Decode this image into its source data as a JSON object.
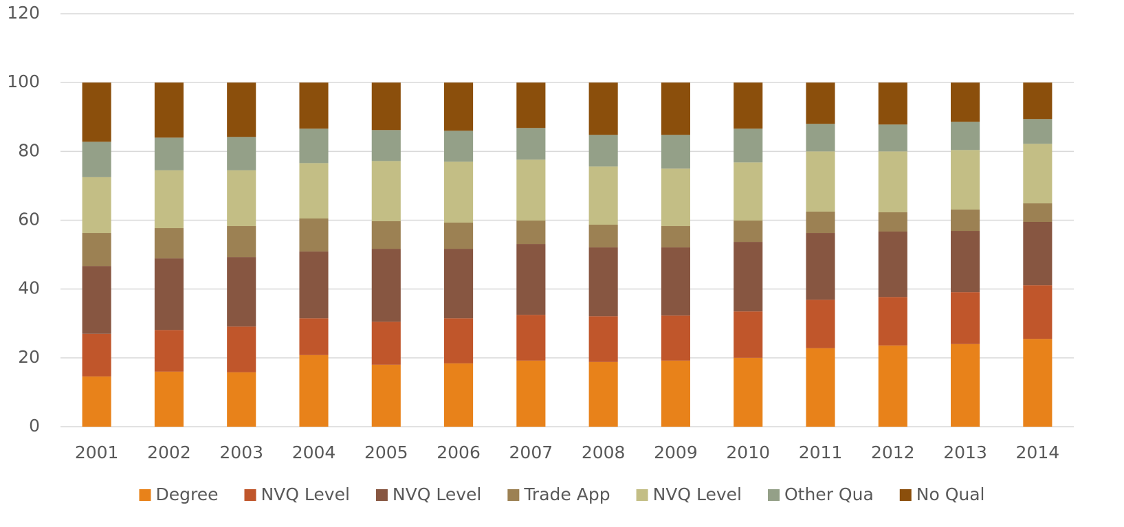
{
  "chart_data": {
    "type": "stacked_bar",
    "categories": [
      "2001",
      "2002",
      "2003",
      "2004",
      "2005",
      "2006",
      "2007",
      "2008",
      "2009",
      "2010",
      "2011",
      "2012",
      "2013",
      "2014"
    ],
    "series": [
      {
        "name": "Degree",
        "color": "#e8821a",
        "values": [
          14.6,
          16.0,
          15.8,
          20.8,
          18.0,
          18.4,
          19.2,
          18.8,
          19.2,
          20.0,
          22.8,
          23.6,
          24.0,
          25.5
        ]
      },
      {
        "name": "NVQ Level",
        "color": "#c0562b",
        "values": [
          12.4,
          12.1,
          13.3,
          10.7,
          12.5,
          13.1,
          13.3,
          13.3,
          13.1,
          13.5,
          14.1,
          14.1,
          15.1,
          15.6
        ]
      },
      {
        "name": "NVQ Level",
        "color": "#875641",
        "values": [
          19.7,
          20.8,
          20.2,
          19.4,
          21.2,
          20.2,
          20.6,
          20.0,
          19.8,
          20.2,
          19.4,
          19.0,
          17.8,
          18.4
        ]
      },
      {
        "name": "Trade App",
        "color": "#9c8153",
        "values": [
          9.6,
          8.8,
          9.0,
          9.6,
          8.0,
          7.6,
          6.8,
          6.6,
          6.2,
          6.2,
          6.2,
          5.6,
          6.2,
          5.4
        ]
      },
      {
        "name": "NVQ Level",
        "color": "#c3be85",
        "values": [
          16.2,
          16.8,
          16.2,
          16.1,
          17.5,
          17.7,
          17.7,
          16.9,
          16.7,
          16.9,
          17.5,
          17.7,
          17.3,
          17.3
        ]
      },
      {
        "name": "Other Qua",
        "color": "#94a088",
        "values": [
          10.3,
          9.5,
          9.7,
          10.0,
          9.0,
          9.0,
          9.2,
          9.2,
          9.8,
          9.8,
          8.0,
          7.8,
          8.2,
          7.2
        ]
      },
      {
        "name": "No Qual",
        "color": "#8b4f0c",
        "values": [
          17.2,
          16.0,
          15.8,
          13.4,
          13.8,
          14.0,
          13.2,
          15.2,
          15.2,
          13.4,
          12.0,
          12.2,
          11.4,
          10.6
        ]
      }
    ],
    "ylim": [
      0,
      120
    ],
    "yticks": [
      0,
      20,
      40,
      60,
      80,
      100,
      120
    ],
    "grid": true,
    "legend": "bottom"
  }
}
